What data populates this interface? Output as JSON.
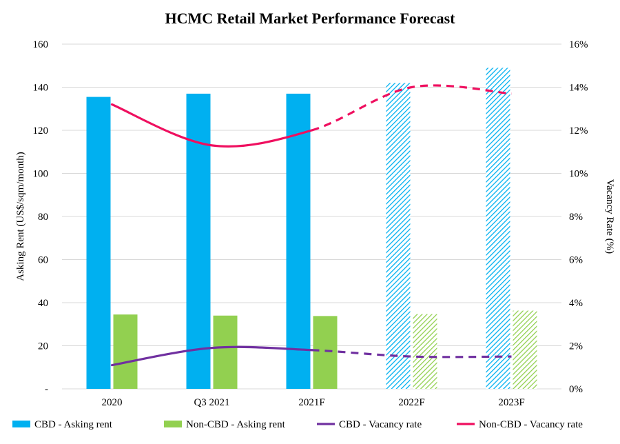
{
  "chart_data": {
    "type": "bar",
    "title": "HCMC Retail Market Performance Forecast",
    "categories": [
      "2020",
      "Q3 2021",
      "2021F",
      "2022F",
      "2023F"
    ],
    "forecast_from_index": 3,
    "ylabel": "Asking Rent (US$/sqm/month)",
    "y2label": "Vacancy Rate (%)",
    "ylim": [
      0,
      160
    ],
    "y2lim": [
      0,
      16
    ],
    "yticks": [
      "-",
      "20",
      "40",
      "60",
      "80",
      "100",
      "120",
      "140",
      "160"
    ],
    "y2ticks": [
      "0%",
      "2%",
      "4%",
      "6%",
      "8%",
      "10%",
      "12%",
      "14%",
      "16%"
    ],
    "grid": true,
    "legend_position": "bottom",
    "series": [
      {
        "name": "CBD - Asking rent",
        "kind": "bar",
        "axis": "left",
        "color": "#00b0f0",
        "values": [
          135.5,
          137,
          137,
          142,
          149
        ]
      },
      {
        "name": "Non-CBD - Asking rent",
        "kind": "bar",
        "axis": "left",
        "color": "#92d050",
        "values": [
          34.5,
          34,
          33.8,
          34.7,
          36.3
        ]
      },
      {
        "name": "CBD - Vacancy rate",
        "kind": "line",
        "axis": "right",
        "color": "#7030a0",
        "values": [
          1.1,
          1.9,
          1.8,
          1.5,
          1.5
        ]
      },
      {
        "name": "Non-CBD - Vacancy rate",
        "kind": "line",
        "axis": "right",
        "color": "#ef0f5f",
        "values": [
          13.2,
          11.3,
          12.0,
          14.0,
          13.7
        ]
      }
    ]
  }
}
